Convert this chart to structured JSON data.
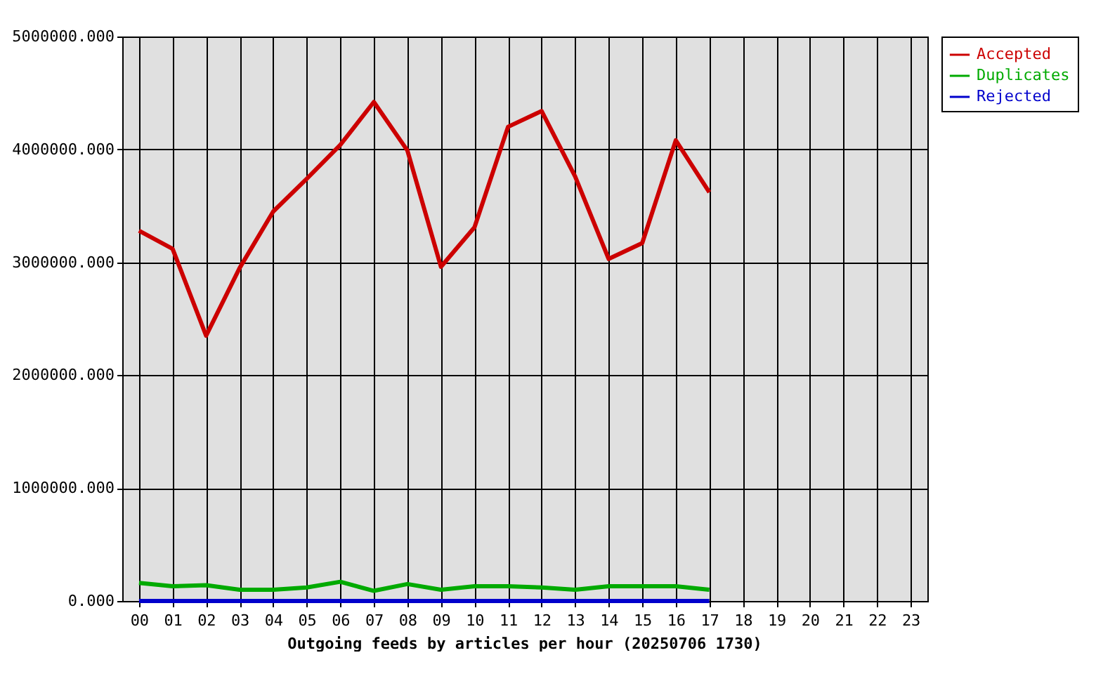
{
  "chart_data": {
    "type": "line",
    "xlabel": "Outgoing feeds by articles per hour (20250706 1730)",
    "categories": [
      "00",
      "01",
      "02",
      "03",
      "04",
      "05",
      "06",
      "07",
      "08",
      "09",
      "10",
      "11",
      "12",
      "13",
      "14",
      "15",
      "16",
      "17",
      "18",
      "19",
      "20",
      "21",
      "22",
      "23"
    ],
    "series": [
      {
        "name": "Accepted",
        "color": "#cc0000",
        "values": [
          3280000,
          3120000,
          2350000,
          2950000,
          3450000,
          3740000,
          4040000,
          4420000,
          3990000,
          2960000,
          3310000,
          4200000,
          4340000,
          3760000,
          3030000,
          3170000,
          4080000,
          3620000,
          null,
          null,
          null,
          null,
          null,
          null
        ]
      },
      {
        "name": "Duplicates",
        "color": "#00aa00",
        "values": [
          160000,
          130000,
          140000,
          100000,
          100000,
          120000,
          170000,
          90000,
          150000,
          100000,
          130000,
          130000,
          120000,
          100000,
          130000,
          130000,
          130000,
          100000,
          null,
          null,
          null,
          null,
          null,
          null
        ]
      },
      {
        "name": "Rejected",
        "color": "#0000cc",
        "values": [
          0,
          0,
          0,
          0,
          0,
          0,
          0,
          0,
          0,
          0,
          0,
          0,
          0,
          0,
          0,
          0,
          0,
          0,
          null,
          null,
          null,
          null,
          null,
          null
        ]
      }
    ],
    "ylim": [
      0,
      5000000
    ],
    "yticks": [
      {
        "value": 0,
        "label": "0.000"
      },
      {
        "value": 1000000,
        "label": "1000000.000"
      },
      {
        "value": 2000000,
        "label": "2000000.000"
      },
      {
        "value": 3000000,
        "label": "3000000.000"
      },
      {
        "value": 4000000,
        "label": "4000000.000"
      },
      {
        "value": 5000000,
        "label": "5000000.000"
      }
    ],
    "grid": true,
    "legend": "top right",
    "marker": "none",
    "line_style": "solid"
  }
}
